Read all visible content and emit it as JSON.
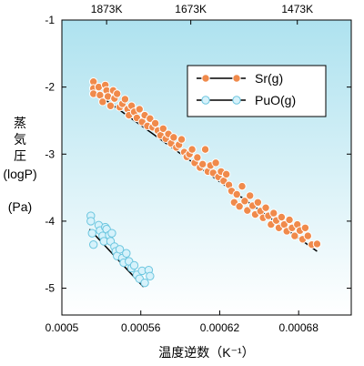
{
  "chart_data": {
    "type": "scatter",
    "title": "",
    "xlabel": "温度逆数（K⁻¹）",
    "ylabel_lines": [
      "蒸",
      "気",
      "圧",
      "(logP)",
      "(Pa)"
    ],
    "xlim": [
      0.0005,
      0.00072
    ],
    "ylim": [
      -5.4,
      -1.0
    ],
    "x_ticks": [
      0.0005,
      0.00056,
      0.00062,
      0.00068
    ],
    "x_tick_labels": [
      "0.0005",
      "0.00056",
      "0.00062",
      "0.00068"
    ],
    "y_ticks": [
      -1,
      -2,
      -3,
      -4,
      -5
    ],
    "y_tick_labels": [
      "-1",
      "-2",
      "-3",
      "-4",
      "-5"
    ],
    "top_axis": {
      "ticks": [
        0.000534,
        0.000598,
        0.000679
      ],
      "labels": [
        "1873K",
        "1673K",
        "1473K"
      ]
    },
    "legend_position": "top-right",
    "grid": false,
    "background_gradient": [
      "#aee2ef",
      "#ffffff"
    ],
    "series": [
      {
        "name": "Sr(g)",
        "marker_color": "#f08a4b",
        "marker_edge": "#ffffff",
        "fit_line": {
          "x": [
            0.000523,
            0.000694
          ],
          "y": [
            -2.05,
            -4.45
          ]
        },
        "points": [
          [
            0.000524,
            -1.92
          ],
          [
            0.000524,
            -2.02
          ],
          [
            0.000524,
            -2.1
          ],
          [
            0.000528,
            -2.0
          ],
          [
            0.000529,
            -2.12
          ],
          [
            0.000531,
            -2.22
          ],
          [
            0.000533,
            -1.97
          ],
          [
            0.000534,
            -2.05
          ],
          [
            0.000535,
            -2.14
          ],
          [
            0.000537,
            -2.28
          ],
          [
            0.000539,
            -2.05
          ],
          [
            0.00054,
            -2.17
          ],
          [
            0.000542,
            -2.1
          ],
          [
            0.000544,
            -2.3
          ],
          [
            0.000546,
            -2.25
          ],
          [
            0.000548,
            -2.18
          ],
          [
            0.00055,
            -2.33
          ],
          [
            0.000551,
            -2.42
          ],
          [
            0.000553,
            -2.28
          ],
          [
            0.000555,
            -2.37
          ],
          [
            0.000557,
            -2.46
          ],
          [
            0.000559,
            -2.33
          ],
          [
            0.000561,
            -2.52
          ],
          [
            0.000563,
            -2.42
          ],
          [
            0.000565,
            -2.58
          ],
          [
            0.000567,
            -2.47
          ],
          [
            0.000569,
            -2.6
          ],
          [
            0.000571,
            -2.54
          ],
          [
            0.000573,
            -2.65
          ],
          [
            0.000575,
            -2.72
          ],
          [
            0.000577,
            -2.62
          ],
          [
            0.000579,
            -2.77
          ],
          [
            0.000581,
            -2.7
          ],
          [
            0.000583,
            -2.84
          ],
          [
            0.000585,
            -2.75
          ],
          [
            0.000587,
            -2.9
          ],
          [
            0.000589,
            -2.86
          ],
          [
            0.000591,
            -2.78
          ],
          [
            0.000593,
            -2.97
          ],
          [
            0.000595,
            -3.04
          ],
          [
            0.000597,
            -3.0
          ],
          [
            0.000599,
            -2.93
          ],
          [
            0.000601,
            -3.13
          ],
          [
            0.000603,
            -3.05
          ],
          [
            0.000605,
            -3.2
          ],
          [
            0.000607,
            -3.15
          ],
          [
            0.000609,
            -2.93
          ],
          [
            0.000611,
            -3.26
          ],
          [
            0.000613,
            -3.17
          ],
          [
            0.000615,
            -3.28
          ],
          [
            0.000617,
            -3.13
          ],
          [
            0.000619,
            -3.34
          ],
          [
            0.000621,
            -3.26
          ],
          [
            0.000623,
            -3.4
          ],
          [
            0.000625,
            -3.3
          ],
          [
            0.000627,
            -3.46
          ],
          [
            0.000629,
            -3.55
          ],
          [
            0.000631,
            -3.72
          ],
          [
            0.000633,
            -3.6
          ],
          [
            0.000635,
            -3.78
          ],
          [
            0.000637,
            -3.48
          ],
          [
            0.000639,
            -3.7
          ],
          [
            0.000641,
            -3.84
          ],
          [
            0.000643,
            -3.62
          ],
          [
            0.000645,
            -3.77
          ],
          [
            0.000647,
            -3.9
          ],
          [
            0.000649,
            -3.72
          ],
          [
            0.000651,
            -3.85
          ],
          [
            0.000653,
            -3.95
          ],
          [
            0.000655,
            -3.8
          ],
          [
            0.000657,
            -3.92
          ],
          [
            0.000659,
            -4.05
          ],
          [
            0.000661,
            -3.88
          ],
          [
            0.000663,
            -3.99
          ],
          [
            0.000665,
            -4.1
          ],
          [
            0.000667,
            -3.94
          ],
          [
            0.000669,
            -4.05
          ],
          [
            0.000671,
            -4.15
          ],
          [
            0.000673,
            -3.98
          ],
          [
            0.000675,
            -4.1
          ],
          [
            0.000677,
            -4.22
          ],
          [
            0.000679,
            -4.05
          ],
          [
            0.000681,
            -4.14
          ],
          [
            0.000683,
            -4.27
          ],
          [
            0.000685,
            -4.1
          ],
          [
            0.000687,
            -4.22
          ],
          [
            0.00069,
            -4.35
          ],
          [
            0.000694,
            -4.34
          ]
        ]
      },
      {
        "name": "PuO(g)",
        "marker_color": "#d6f2fb",
        "marker_edge": "#6cc6df",
        "fit_line": {
          "x": [
            0.000521,
            0.000562
          ],
          "y": [
            -4.12,
            -4.98
          ]
        },
        "points": [
          [
            0.000522,
            -3.92
          ],
          [
            0.000522,
            -4.0
          ],
          [
            0.000523,
            -4.18
          ],
          [
            0.000524,
            -4.35
          ],
          [
            0.000528,
            -4.06
          ],
          [
            0.000529,
            -4.14
          ],
          [
            0.000531,
            -4.22
          ],
          [
            0.000532,
            -4.3
          ],
          [
            0.000533,
            -4.09
          ],
          [
            0.000534,
            -4.12
          ],
          [
            0.000536,
            -4.21
          ],
          [
            0.000537,
            -4.3
          ],
          [
            0.000538,
            -4.18
          ],
          [
            0.00054,
            -4.38
          ],
          [
            0.000541,
            -4.45
          ],
          [
            0.000542,
            -4.52
          ],
          [
            0.000544,
            -4.42
          ],
          [
            0.000546,
            -4.55
          ],
          [
            0.000547,
            -4.62
          ],
          [
            0.000549,
            -4.48
          ],
          [
            0.000551,
            -4.6
          ],
          [
            0.000553,
            -4.7
          ],
          [
            0.000555,
            -4.66
          ],
          [
            0.000557,
            -4.8
          ],
          [
            0.000559,
            -4.86
          ],
          [
            0.000561,
            -4.74
          ],
          [
            0.000563,
            -4.92
          ],
          [
            0.000566,
            -4.73
          ],
          [
            0.000567,
            -4.82
          ]
        ]
      }
    ]
  }
}
